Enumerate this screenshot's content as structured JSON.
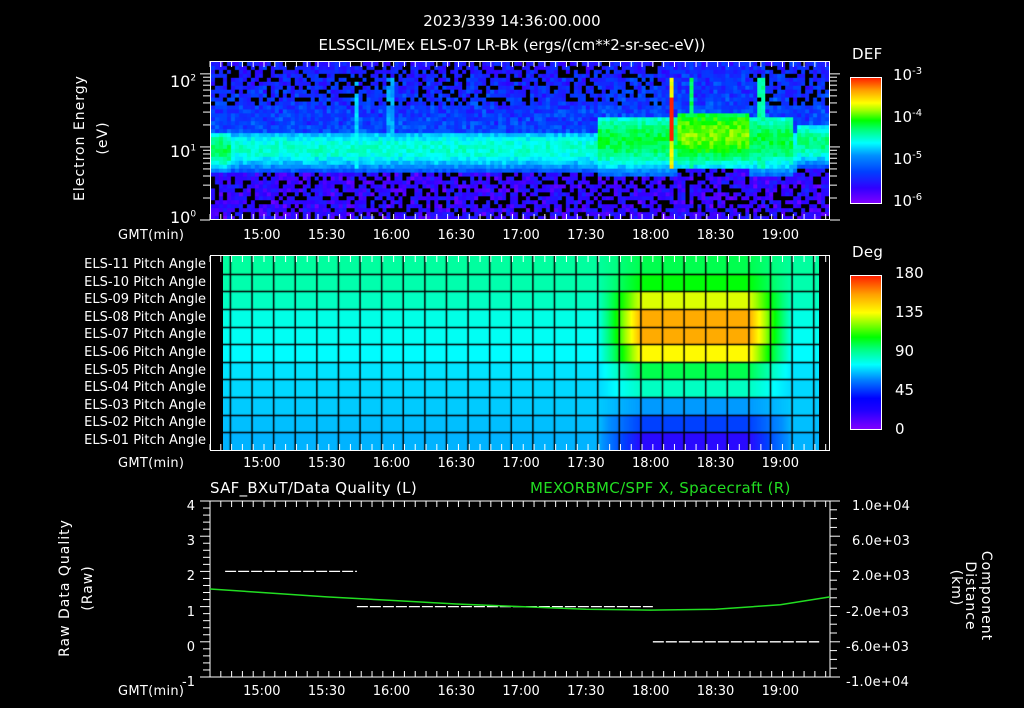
{
  "header": {
    "timestamp": "2023/339 14:36:00.000",
    "subtitle": "ELSSCIL/MEx ELS-07 LR-Bk  (ergs/(cm**2-sr-sec-eV))"
  },
  "time_axis": {
    "label": "GMT(min)",
    "ticks": [
      "15:00",
      "15:30",
      "16:00",
      "16:30",
      "17:00",
      "17:30",
      "18:00",
      "18:30",
      "19:00"
    ],
    "start": "14:36",
    "end": "19:23"
  },
  "panel1": {
    "ylabel_line1": "Electron Energy",
    "ylabel_line2": "(eV)",
    "yticks": [
      {
        "base": "10",
        "exp": "2"
      },
      {
        "base": "10",
        "exp": "1"
      },
      {
        "base": "10",
        "exp": "0"
      }
    ],
    "colorbar": {
      "title": "DEF",
      "ticks": [
        {
          "base": "10",
          "exp": "-3"
        },
        {
          "base": "10",
          "exp": "-4"
        },
        {
          "base": "10",
          "exp": "-5"
        },
        {
          "base": "10",
          "exp": "-6"
        }
      ]
    }
  },
  "panel2": {
    "rows": [
      "ELS-11 Pitch Angle",
      "ELS-10 Pitch Angle",
      "ELS-09 Pitch Angle",
      "ELS-08 Pitch Angle",
      "ELS-07 Pitch Angle",
      "ELS-06 Pitch Angle",
      "ELS-05 Pitch Angle",
      "ELS-04 Pitch Angle",
      "ELS-03 Pitch Angle",
      "ELS-02 Pitch Angle",
      "ELS-01 Pitch Angle"
    ],
    "colorbar": {
      "title": "Deg",
      "ticks": [
        "180",
        "135",
        "90",
        "45",
        "0"
      ]
    }
  },
  "panel3": {
    "left_title": "SAF_BXuT/Data Quality (L)",
    "right_title": "MEXORBMC/SPF X, Spacecraft (R)",
    "right_title_color": "#22dd22",
    "ylabel_left_line1": "Raw Data Quality",
    "ylabel_left_line2": "(Raw)",
    "ylabel_right_line1": "Component Distance",
    "ylabel_right_line2": "(km)",
    "yticks_left": [
      "4",
      "3",
      "2",
      "1",
      "0",
      "-1"
    ],
    "yticks_right": [
      "1.0e+04",
      "6.0e+03",
      "2.0e+03",
      "-2.0e+03",
      "-6.0e+03",
      "-1.0e+04"
    ]
  },
  "chart_data": [
    {
      "type": "heatmap",
      "title": "ELSSCIL/MEx ELS-07 LR-Bk (ergs/(cm**2-sr-sec-eV))",
      "xlabel": "GMT(min)",
      "ylabel": "Electron Energy (eV)",
      "x_range": [
        "14:36",
        "19:23"
      ],
      "y_range": [
        1,
        150
      ],
      "y_scale": "log",
      "colorbar": {
        "label": "DEF",
        "range": [
          1e-06,
          0.001
        ],
        "scale": "log"
      },
      "features": [
        {
          "time_range": [
            "14:36",
            "17:40"
          ],
          "energy_peak_eV": 10,
          "def_level": 3e-05
        },
        {
          "time_range": [
            "17:40",
            "19:05"
          ],
          "energy_peak_eV": 15,
          "def_level": 0.00015
        },
        {
          "time": "18:09",
          "energy_eV": 20,
          "def_level": 0.0005,
          "note": "intense spike"
        },
        {
          "time": "18:18",
          "energy_eV": 20,
          "def_level": 0.0003
        }
      ]
    },
    {
      "type": "heatmap",
      "title": "Pitch Angle",
      "xlabel": "GMT(min)",
      "categories": [
        "ELS-11",
        "ELS-10",
        "ELS-09",
        "ELS-08",
        "ELS-07",
        "ELS-06",
        "ELS-05",
        "ELS-04",
        "ELS-03",
        "ELS-02",
        "ELS-01"
      ],
      "colorbar": {
        "label": "Deg",
        "range": [
          0,
          180
        ]
      },
      "values_baseline_deg": [
        100,
        98,
        95,
        90,
        88,
        86,
        82,
        80,
        78,
        76,
        74
      ],
      "values_event_deg_17:45_18:55": [
        110,
        118,
        140,
        160,
        160,
        145,
        110,
        95,
        70,
        45,
        25
      ]
    },
    {
      "type": "line",
      "xlabel": "GMT(min)",
      "series": [
        {
          "name": "SAF_BXuT/Data Quality (L)",
          "axis": "left",
          "ylabel": "Raw Data Quality (Raw)",
          "ylim": [
            -1,
            4
          ],
          "segments": [
            {
              "x": [
                "14:43",
                "15:44"
              ],
              "y": 2
            },
            {
              "x": [
                "15:44",
                "18:01"
              ],
              "y": 1
            },
            {
              "x": [
                "18:01",
                "19:18"
              ],
              "y": 0
            }
          ]
        },
        {
          "name": "MEXORBMC/SPF X, Spacecraft (R)",
          "axis": "right",
          "ylabel": "Component Distance (km)",
          "ylim": [
            -10000,
            10000
          ],
          "color": "#22dd22",
          "x": [
            "14:36",
            "15:00",
            "15:30",
            "16:00",
            "16:30",
            "17:00",
            "17:30",
            "18:00",
            "18:30",
            "19:00",
            "19:23"
          ],
          "y": [
            0,
            -400,
            -900,
            -1300,
            -1700,
            -2000,
            -2300,
            -2400,
            -2300,
            -1800,
            -900
          ]
        }
      ]
    }
  ]
}
